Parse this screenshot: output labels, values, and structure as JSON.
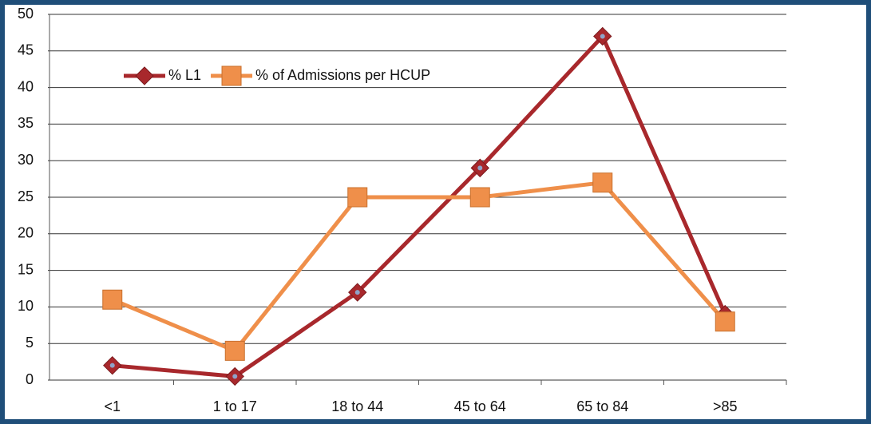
{
  "chart_data": {
    "type": "line",
    "categories": [
      "<1",
      "1 to 17",
      "18 to 44",
      "45 to 64",
      "65 to 84",
      ">85"
    ],
    "series": [
      {
        "name": "% L1",
        "color": "#a8282c",
        "marker": "diamond",
        "values": [
          2,
          0.5,
          12,
          29,
          47,
          9
        ]
      },
      {
        "name": "% of Admissions per HCUP",
        "color": "#ef8f4a",
        "marker": "square",
        "values": [
          11,
          4,
          25,
          25,
          27,
          8
        ]
      }
    ],
    "ylim": [
      0,
      50
    ],
    "yticks": [
      0,
      5,
      10,
      15,
      20,
      25,
      30,
      35,
      40,
      45,
      50
    ],
    "grid": true,
    "legend": "top-left"
  }
}
